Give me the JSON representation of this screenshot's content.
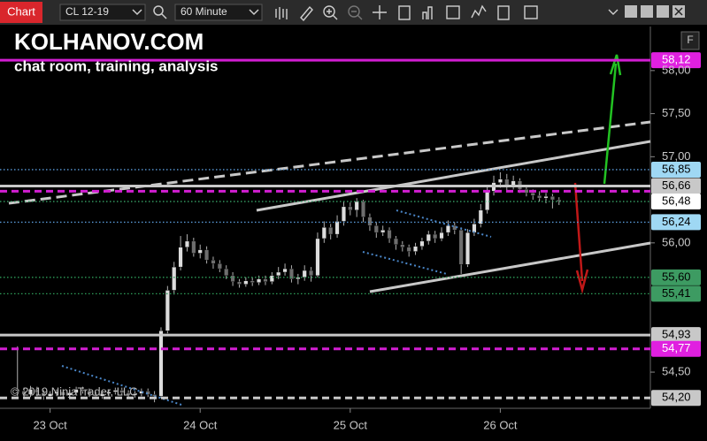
{
  "toolbar": {
    "app_label": "Chart",
    "instrument": "CL 12-19",
    "interval": "60 Minute"
  },
  "chart_data": {
    "type": "candlestick",
    "title": "KOLHANOV.COM",
    "subtitle": "chat room, training, analysis",
    "copyright": "© 2019 NinjaTrader, LLC",
    "panel_button": "F",
    "open": [
      54.3,
      54.28,
      54.24,
      54.3,
      54.26,
      54.22,
      54.25,
      54.27,
      54.23,
      54.26,
      54.3,
      54.28,
      54.24,
      54.22,
      54.25,
      54.27,
      54.29,
      54.26,
      54.23,
      54.25,
      54.28,
      54.24,
      54.22,
      54.98,
      55.45,
      55.72,
      55.95,
      56.02,
      55.88,
      55.92,
      55.8,
      55.76,
      55.7,
      55.62,
      55.55,
      55.52,
      55.56,
      55.54,
      55.58,
      55.55,
      55.62,
      55.66,
      55.7,
      55.58,
      55.6,
      55.68,
      55.62,
      56.05,
      56.18,
      56.1,
      56.25,
      56.42,
      56.38,
      56.48,
      56.3,
      56.2,
      56.12,
      56.15,
      56.05,
      55.98,
      55.95,
      55.9,
      55.96,
      56.02,
      56.1,
      56.05,
      56.12,
      56.2,
      56.15,
      55.75,
      56.12,
      56.22,
      56.38,
      56.6,
      56.7,
      56.74,
      56.66,
      56.72,
      56.62,
      56.58,
      56.55,
      56.52,
      56.54,
      56.5
    ],
    "high": [
      54.8,
      54.32,
      54.34,
      54.33,
      54.29,
      54.28,
      54.3,
      54.3,
      54.29,
      54.33,
      54.33,
      54.31,
      54.27,
      54.28,
      54.3,
      54.32,
      54.32,
      54.29,
      54.28,
      54.31,
      54.31,
      54.28,
      55.02,
      55.5,
      55.78,
      56.08,
      56.1,
      56.06,
      55.98,
      55.96,
      55.84,
      55.8,
      55.74,
      55.66,
      55.58,
      55.6,
      55.6,
      55.62,
      55.62,
      55.66,
      55.72,
      55.76,
      55.74,
      55.64,
      55.74,
      55.72,
      56.12,
      56.25,
      56.22,
      56.32,
      56.48,
      56.47,
      56.52,
      56.5,
      56.34,
      56.24,
      56.2,
      56.18,
      56.08,
      56.02,
      55.98,
      56.0,
      56.06,
      56.14,
      56.14,
      56.18,
      56.26,
      56.24,
      56.18,
      56.16,
      56.28,
      56.45,
      56.66,
      56.78,
      56.82,
      56.8,
      56.78,
      56.75,
      56.66,
      56.62,
      56.6,
      56.58,
      56.57,
      56.53
    ],
    "low": [
      54.22,
      54.2,
      54.21,
      54.22,
      54.18,
      54.19,
      54.22,
      54.2,
      54.2,
      54.23,
      54.25,
      54.21,
      54.19,
      54.19,
      54.22,
      54.24,
      54.23,
      54.2,
      54.2,
      54.22,
      54.21,
      54.15,
      54.2,
      54.95,
      55.4,
      55.68,
      55.9,
      55.84,
      55.82,
      55.76,
      55.7,
      55.66,
      55.58,
      55.5,
      55.48,
      55.49,
      55.5,
      55.51,
      55.51,
      55.52,
      55.58,
      55.62,
      55.54,
      55.52,
      55.56,
      55.55,
      55.6,
      56.0,
      56.04,
      56.06,
      56.2,
      56.32,
      56.3,
      56.24,
      56.14,
      56.06,
      56.08,
      56.0,
      55.92,
      55.9,
      55.84,
      55.86,
      55.92,
      55.98,
      56.0,
      56.02,
      56.08,
      56.1,
      55.64,
      55.72,
      56.08,
      56.18,
      56.34,
      56.55,
      56.64,
      56.6,
      56.62,
      56.58,
      56.54,
      56.5,
      56.48,
      56.46,
      56.4,
      56.44
    ],
    "close": [
      54.28,
      54.24,
      54.3,
      54.26,
      54.22,
      54.25,
      54.27,
      54.23,
      54.26,
      54.3,
      54.28,
      54.24,
      54.22,
      54.25,
      54.27,
      54.29,
      54.26,
      54.23,
      54.25,
      54.28,
      54.24,
      54.22,
      54.98,
      55.45,
      55.72,
      55.95,
      56.02,
      55.88,
      55.92,
      55.8,
      55.76,
      55.7,
      55.62,
      55.55,
      55.52,
      55.56,
      55.54,
      55.58,
      55.55,
      55.62,
      55.66,
      55.7,
      55.58,
      55.6,
      55.68,
      55.62,
      56.05,
      56.18,
      56.1,
      56.25,
      56.42,
      56.38,
      56.48,
      56.3,
      56.2,
      56.12,
      56.15,
      56.05,
      55.98,
      55.95,
      55.9,
      55.96,
      56.02,
      56.1,
      56.05,
      56.12,
      56.2,
      56.15,
      55.75,
      56.12,
      56.22,
      56.38,
      56.6,
      56.7,
      56.74,
      56.66,
      56.72,
      56.62,
      56.58,
      56.55,
      56.52,
      56.54,
      56.5,
      56.48
    ],
    "up_color": "#dcdcdc",
    "down_color": "#6e6e6e",
    "wick_color": "#b0b0b0",
    "xlim": [
      -2,
      97
    ],
    "xticks": [
      {
        "value": 5,
        "label": "23 Oct"
      },
      {
        "value": 28,
        "label": "24 Oct"
      },
      {
        "value": 51,
        "label": "25 Oct"
      },
      {
        "value": 74,
        "label": "26 Oct"
      }
    ],
    "ylim": [
      54.08,
      58.46
    ],
    "yticks": [
      {
        "value": 54.5,
        "label": "54,50"
      },
      {
        "value": 56,
        "label": "56,00"
      },
      {
        "value": 57,
        "label": "57,00"
      },
      {
        "value": 57.5,
        "label": "57,50"
      },
      {
        "value": 58,
        "label": "58,00"
      }
    ],
    "levels": [
      {
        "value": 58.12,
        "label": "58,12",
        "color": "#d21ed2",
        "box": "#e020e0",
        "text_color": "#ffffff",
        "style": "solid"
      },
      {
        "value": 56.85,
        "label": "56,85",
        "color": "#5a9ad8",
        "box": "#9fd8f4",
        "text_color": "#000000",
        "style": "dotted"
      },
      {
        "value": 56.66,
        "label": "56,66",
        "color": "#c8c8c8",
        "box": "#c8c8c8",
        "text_color": "#000000",
        "style": "solid"
      },
      {
        "value": 56.6,
        "color": "#d21ed2",
        "style": "dashed"
      },
      {
        "value": 56.48,
        "label": "56,48",
        "color": "#3cb371",
        "box": "#ffffff",
        "text_color": "#000000",
        "style": "dotted"
      },
      {
        "value": 56.24,
        "label": "56,24",
        "color": "#5a9ad8",
        "box": "#9fd8f4",
        "text_color": "#000000",
        "style": "dotted"
      },
      {
        "value": 55.6,
        "label": "55,60",
        "color": "#2e9e5a",
        "box": "#3d9b62",
        "text_color": "#000000",
        "style": "dotted"
      },
      {
        "value": 55.41,
        "label": "55,41",
        "color": "#2e9e5a",
        "box": "#3d9b62",
        "text_color": "#000000",
        "style": "dotted"
      },
      {
        "value": 54.93,
        "label": "54,93",
        "color": "#c8c8c8",
        "box": "#c8c8c8",
        "text_color": "#000000",
        "style": "solid"
      },
      {
        "value": 54.77,
        "label": "54,77",
        "color": "#d21ed2",
        "box": "#e020e0",
        "text_color": "#ffffff",
        "style": "dashed"
      },
      {
        "value": 54.2,
        "label": "54,20",
        "color": "#c8c8c8",
        "box": "#c8c8c8",
        "text_color": "#000000",
        "style": "dashed"
      }
    ]
  }
}
